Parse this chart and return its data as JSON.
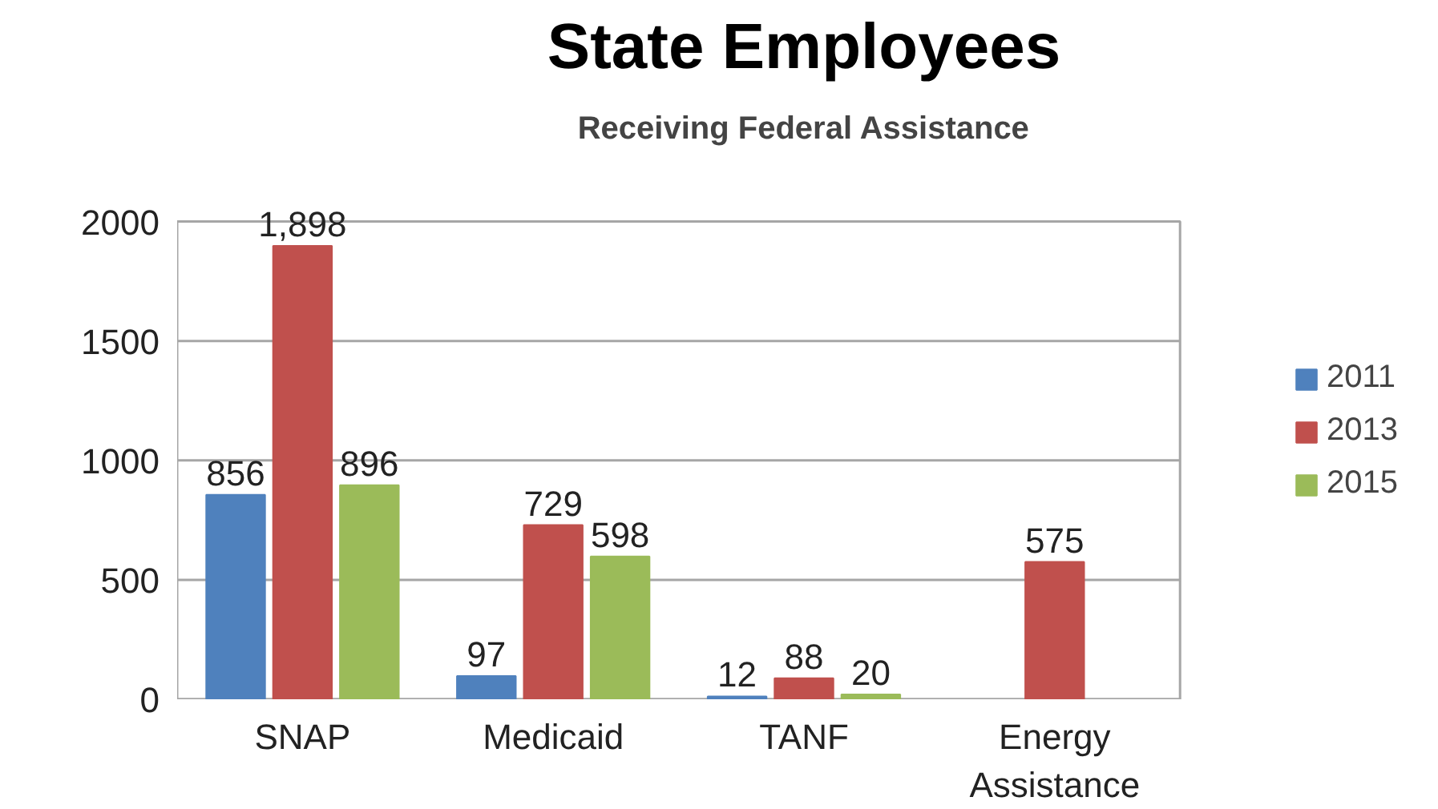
{
  "chart_data": {
    "type": "bar",
    "title": "State Employees",
    "subtitle": "Receiving Federal Assistance",
    "categories": [
      "SNAP",
      "Medicaid",
      "TANF",
      "Energy Assistance"
    ],
    "series": [
      {
        "name": "2011",
        "color": "#4f81bd",
        "values": [
          856,
          97,
          12,
          null
        ],
        "value_labels": [
          "856",
          "97",
          "12",
          null
        ]
      },
      {
        "name": "2013",
        "color": "#c0504d",
        "values": [
          1898,
          729,
          88,
          575
        ],
        "value_labels": [
          "1,898",
          "729",
          "88",
          "575"
        ]
      },
      {
        "name": "2015",
        "color": "#9bbb59",
        "values": [
          896,
          598,
          20,
          null
        ],
        "value_labels": [
          "896",
          "598",
          "20",
          null
        ]
      }
    ],
    "ylim": [
      0,
      2000
    ],
    "yticks": [
      0,
      500,
      1000,
      1500,
      2000
    ],
    "grid": "y",
    "legend": "right",
    "data_labels": true
  }
}
